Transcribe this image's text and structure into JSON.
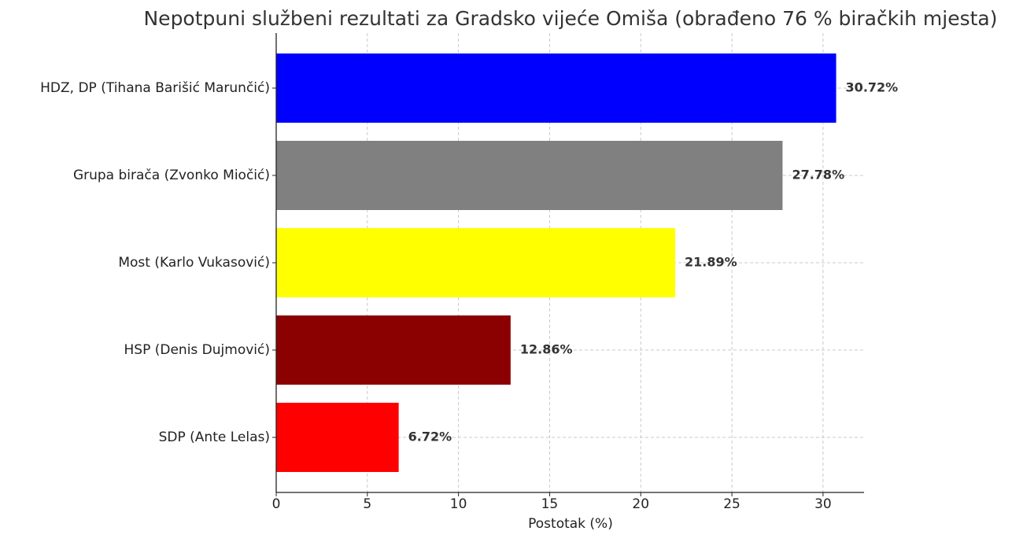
{
  "chart_data": {
    "type": "barh",
    "title": "Nepotpuni službeni rezultati za Gradsko vijeće Omiša (obrađeno 76 % biračkih mjesta)",
    "xlabel": "Postotak (%)",
    "categories": [
      "HDZ, DP (Tihana Barišić Marunčić)",
      "Grupa birača (Zvonko Miočić)",
      "Most (Karlo Vukasović)",
      "HSP (Denis Dujmović)",
      "SDP (Ante Lelas)"
    ],
    "values": [
      30.72,
      27.78,
      21.89,
      12.86,
      6.72
    ],
    "value_labels": [
      "30.72%",
      "27.78%",
      "21.89%",
      "12.86%",
      "6.72%"
    ],
    "colors": [
      "#0000ff",
      "#808080",
      "#ffff00",
      "#8b0000",
      "#ff0000"
    ],
    "xlim": [
      0,
      32.25
    ],
    "xticks": [
      0,
      5,
      10,
      15,
      20,
      25,
      30
    ],
    "grid": true
  }
}
